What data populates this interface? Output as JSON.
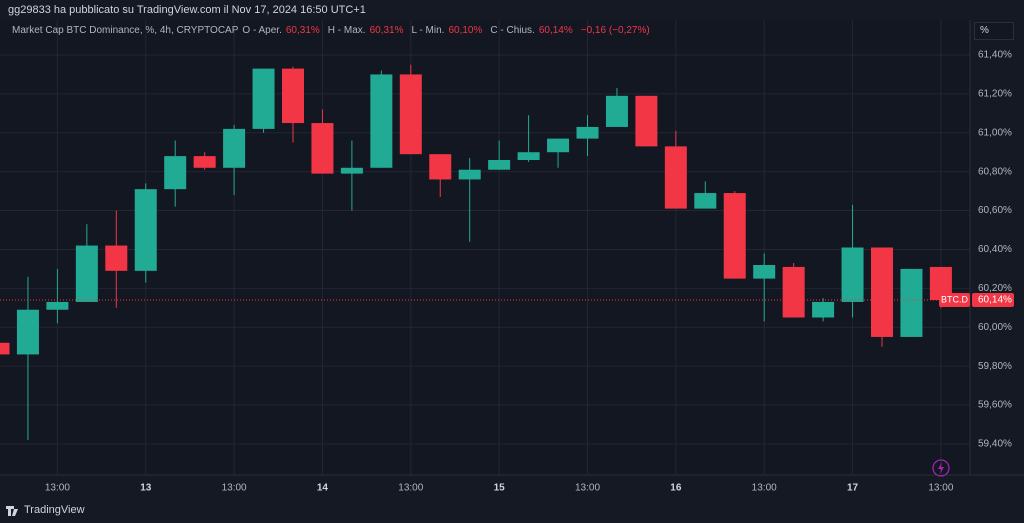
{
  "header": {
    "byline": "gg29833 ha pubblicato su TradingView.com il Nov 17, 2024 16:50 UTC+1",
    "symbol": "Market Cap BTC Dominance, %, 4h, CRYPTOCAP",
    "open_label": "O - Aper.",
    "open_value": "60,31%",
    "high_label": "H - Max.",
    "high_value": "60,31%",
    "low_label": "L - Min.",
    "low_value": "60,10%",
    "close_label": "C - Chius.",
    "close_value": "60,14%",
    "change": "−0,16 (−0,27%)",
    "scale_button": "%"
  },
  "chart_data": {
    "type": "candlestick",
    "categories": [
      null,
      null,
      "13:00",
      null,
      null,
      "13",
      null,
      null,
      "13:00",
      null,
      null,
      "14",
      null,
      null,
      "13:00",
      null,
      null,
      "15",
      null,
      null,
      "13:00",
      null,
      null,
      "16",
      null,
      null,
      "13:00",
      null,
      null,
      "17",
      null,
      null,
      "13:00"
    ],
    "open": [
      59.92,
      59.86,
      60.09,
      60.13,
      60.42,
      60.29,
      60.71,
      60.88,
      60.82,
      61.02,
      61.33,
      61.05,
      60.79,
      60.82,
      61.3,
      60.89,
      60.76,
      60.81,
      60.86,
      60.9,
      60.97,
      61.03,
      61.19,
      60.93,
      60.61,
      60.69,
      60.25,
      60.31,
      60.05,
      60.13,
      60.41,
      59.95,
      60.31
    ],
    "high": [
      59.93,
      60.26,
      60.3,
      60.53,
      60.6,
      60.74,
      60.96,
      60.9,
      61.04,
      61.33,
      61.34,
      61.12,
      60.96,
      61.32,
      61.35,
      60.89,
      60.87,
      60.96,
      61.09,
      60.97,
      61.09,
      61.23,
      61.19,
      61.01,
      60.75,
      60.7,
      60.38,
      60.33,
      60.15,
      60.63,
      60.41,
      60.3,
      60.31
    ],
    "low": [
      59.85,
      59.42,
      60.02,
      60.13,
      60.1,
      60.23,
      60.62,
      60.81,
      60.68,
      61.0,
      60.95,
      60.79,
      60.6,
      60.82,
      60.89,
      60.67,
      60.44,
      60.81,
      60.85,
      60.82,
      60.88,
      61.03,
      60.93,
      60.61,
      60.61,
      60.25,
      60.03,
      60.05,
      60.03,
      60.05,
      59.9,
      59.95,
      60.1
    ],
    "close": [
      59.86,
      60.09,
      60.13,
      60.42,
      60.29,
      60.71,
      60.88,
      60.82,
      61.02,
      61.33,
      61.05,
      60.79,
      60.82,
      61.3,
      60.89,
      60.76,
      60.81,
      60.86,
      60.9,
      60.97,
      61.03,
      61.19,
      60.93,
      60.61,
      60.69,
      60.25,
      60.32,
      60.05,
      60.13,
      60.41,
      59.95,
      60.3,
      60.14
    ],
    "up_color": "#22ab94",
    "down_color": "#f23645",
    "ylim": [
      59.24,
      61.58
    ],
    "yticks": [
      {
        "value": 59.4,
        "label": "59,40%"
      },
      {
        "value": 59.6,
        "label": "59,60%"
      },
      {
        "value": 59.8,
        "label": "59,80%"
      },
      {
        "value": 60.0,
        "label": "60,00%"
      },
      {
        "value": 60.2,
        "label": "60,20%"
      },
      {
        "value": 60.4,
        "label": "60,40%"
      },
      {
        "value": 60.6,
        "label": "60,60%"
      },
      {
        "value": 60.8,
        "label": "60,80%"
      },
      {
        "value": 61.0,
        "label": "61,00%"
      },
      {
        "value": 61.2,
        "label": "61,20%"
      },
      {
        "value": 61.4,
        "label": "61,40%"
      }
    ],
    "grid": true,
    "last_price": {
      "value": 60.14,
      "label": "60,14%"
    },
    "symbol_tag": "BTC.D"
  },
  "footer": {
    "brand": "TradingView"
  }
}
